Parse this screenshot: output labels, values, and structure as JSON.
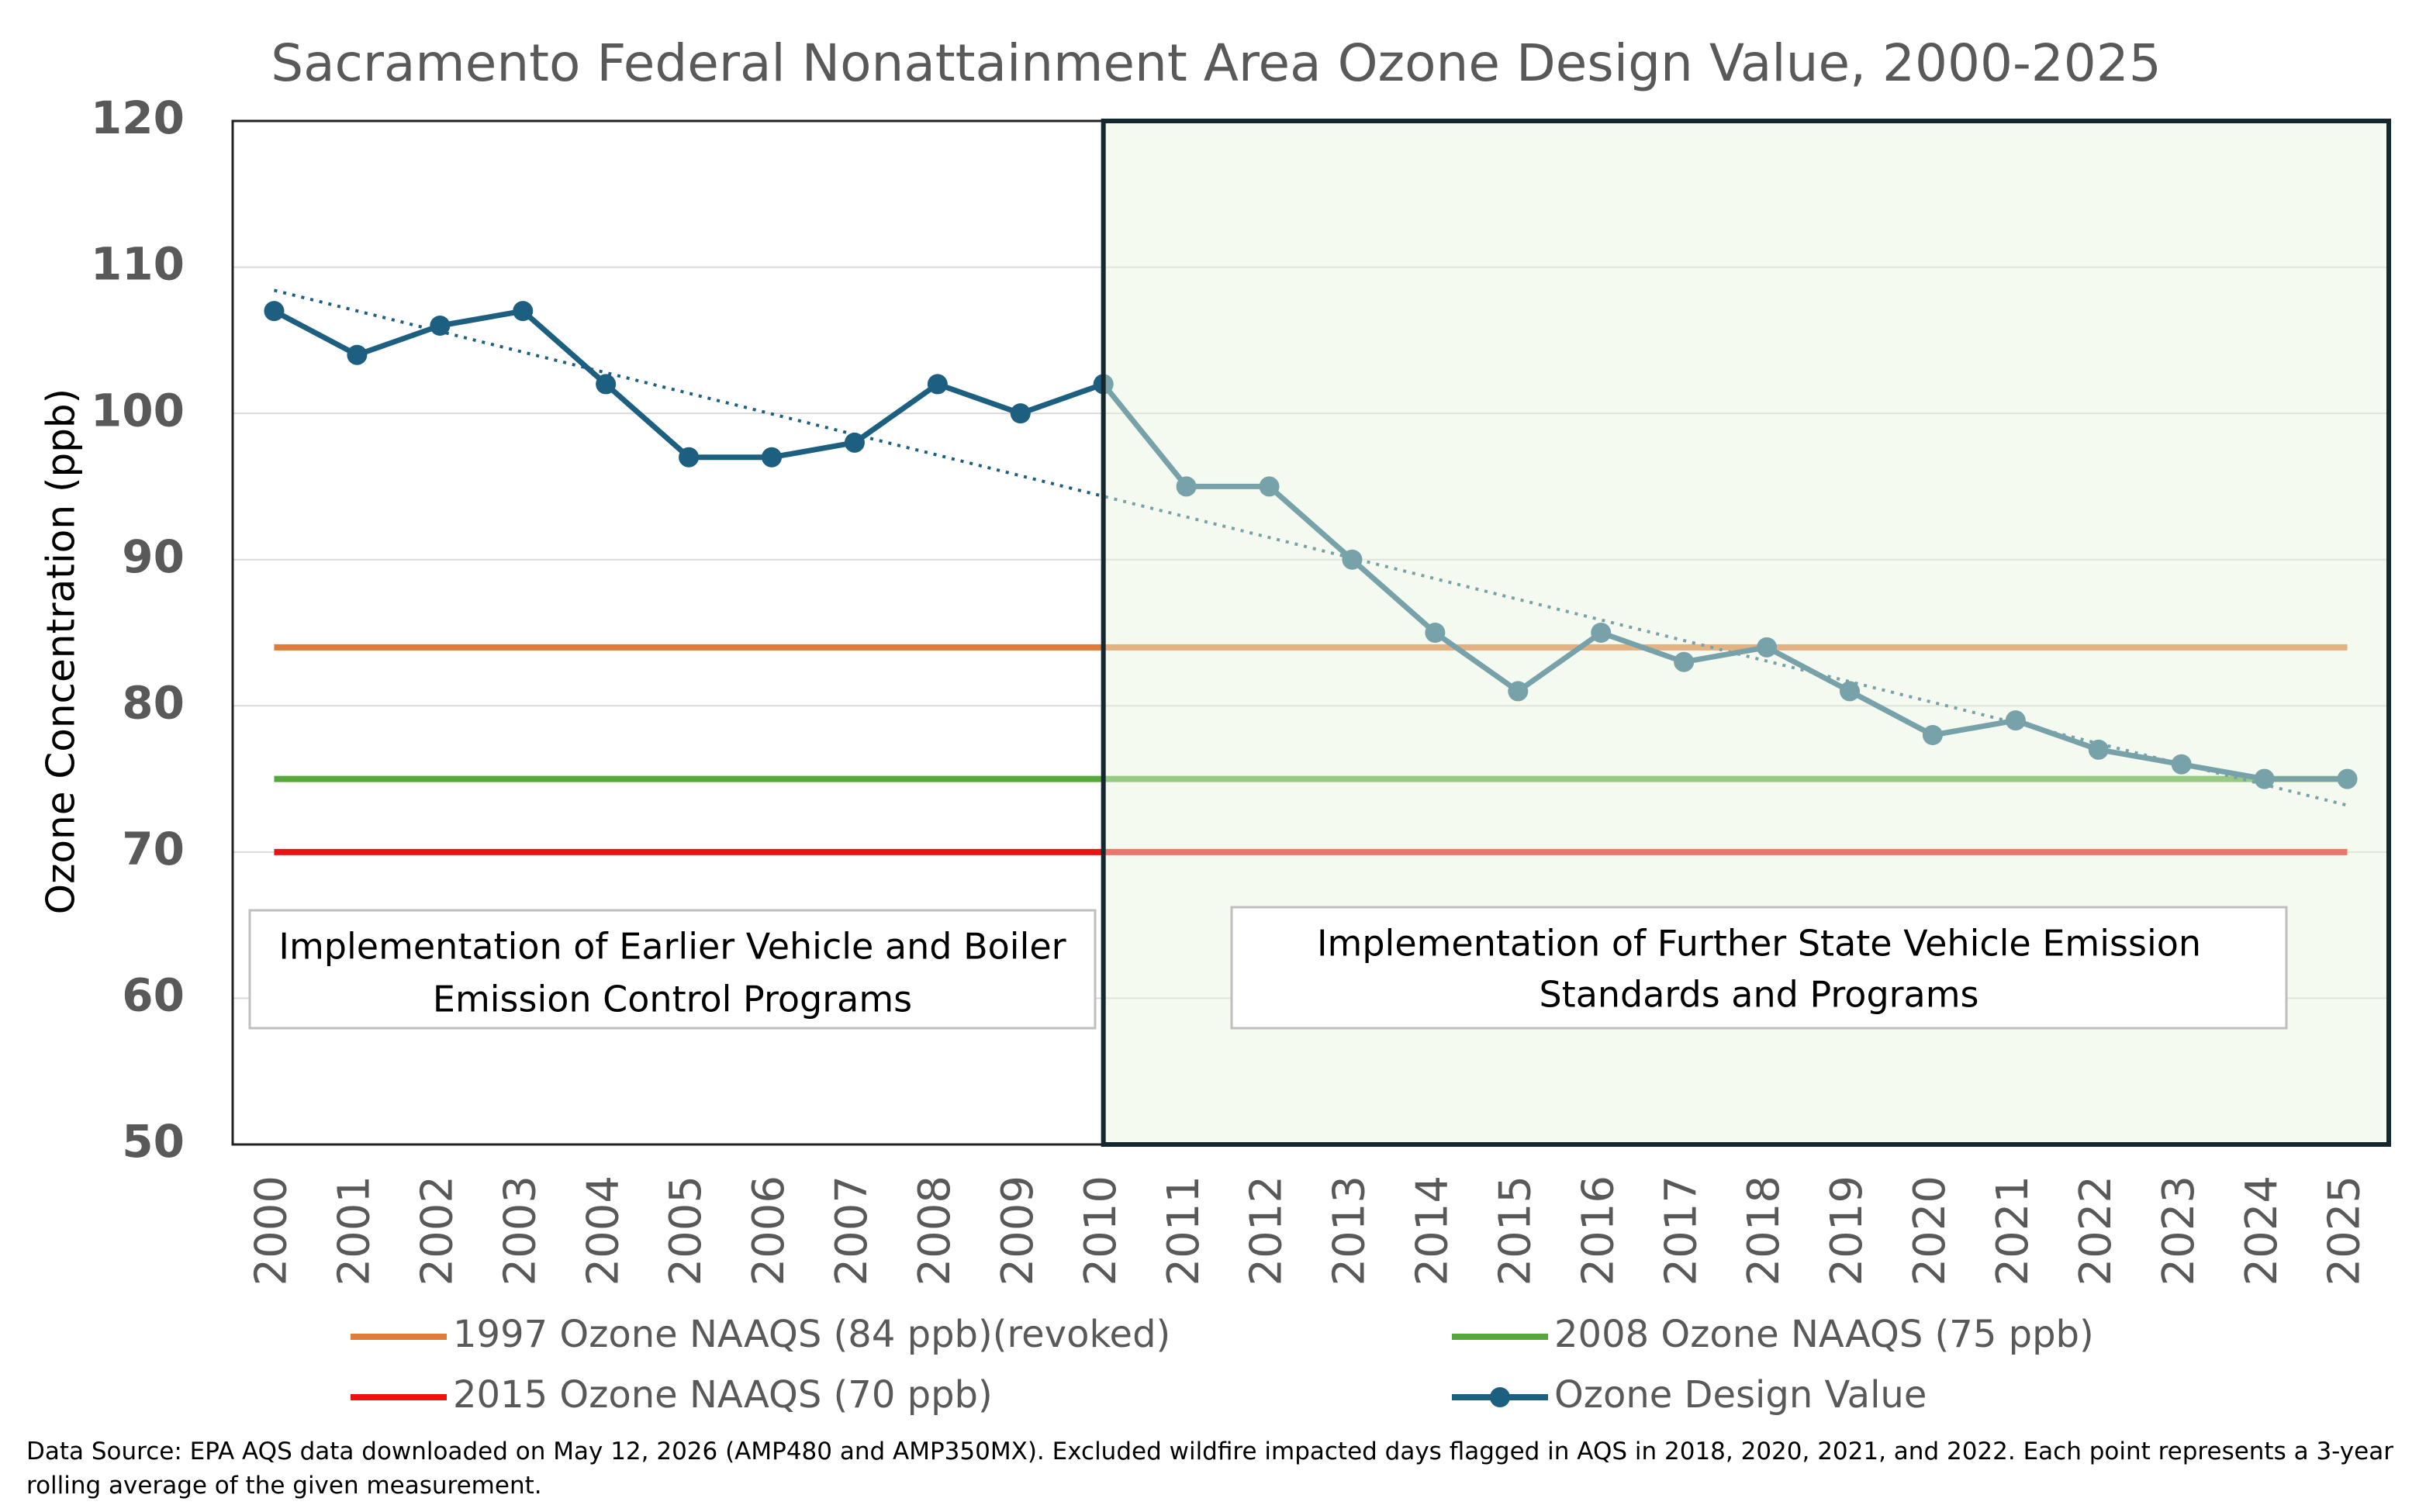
{
  "chart_data": {
    "type": "line",
    "title": "Sacramento Federal Nonattainment Area Ozone Design Value, 2000-2025",
    "y_label": "Ozone Concentration (ppb)",
    "x": [
      2000,
      2001,
      2002,
      2003,
      2004,
      2005,
      2006,
      2007,
      2008,
      2009,
      2010,
      2011,
      2012,
      2013,
      2014,
      2015,
      2016,
      2017,
      2018,
      2019,
      2020,
      2021,
      2022,
      2023,
      2024,
      2025
    ],
    "xlim": [
      1999.5,
      2025.5
    ],
    "series": [
      {
        "name": "Ozone Design Value",
        "color": "#1d5f80",
        "values": [
          107,
          104,
          106,
          107,
          102,
          97,
          97,
          98,
          102,
          100,
          102,
          95,
          95,
          90,
          85,
          81,
          85,
          83,
          84,
          81,
          78,
          79,
          77,
          76,
          75,
          75
        ]
      }
    ],
    "reference_lines": [
      {
        "name": "1997 Ozone NAAQS (84 ppb)(revoked)",
        "value": 84,
        "color": "#e07b39"
      },
      {
        "name": "2008 Ozone NAAQS (75 ppb)",
        "value": 75,
        "color": "#56a83a"
      },
      {
        "name": "2015 Ozone NAAQS (70 ppb)",
        "value": 70,
        "color": "#ee1111"
      }
    ],
    "trendline": true,
    "highlight": {
      "x_start": 2010,
      "color": "#e6f4dc"
    },
    "ylim": [
      50,
      120
    ],
    "yticks": [
      50,
      60,
      70,
      80,
      90,
      100,
      110,
      120
    ],
    "grid": true,
    "annotations": [
      {
        "lines": [
          "Implementation of Earlier Vehicle and Boiler",
          "Emission Control Programs"
        ]
      },
      {
        "lines": [
          "Implementation of Further State Vehicle Emission",
          "Standards and Programs"
        ]
      }
    ],
    "footnote": "Data Source: EPA AQS data downloaded on May 12, 2026 (AMP480 and AMP350MX). Excluded wildfire impacted days flagged in AQS in 2018, 2020, 2021, and 2022. Each point represents a 3-year rolling average of the given measurement."
  }
}
